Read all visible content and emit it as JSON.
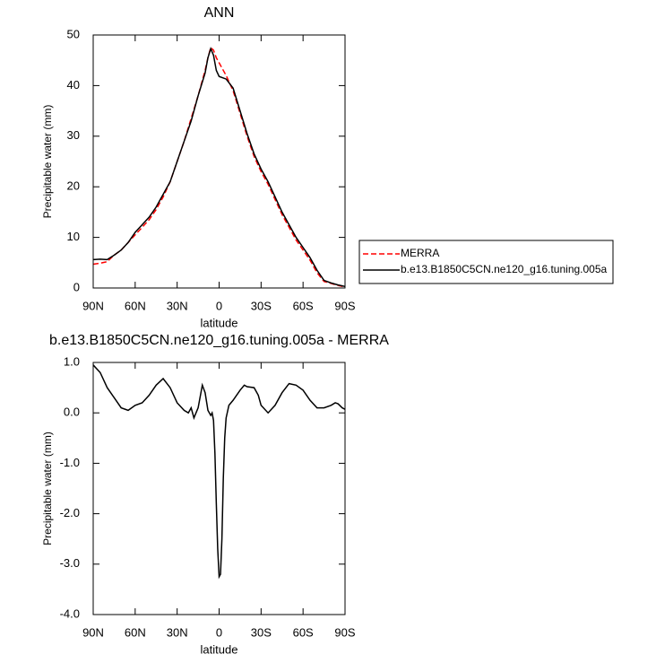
{
  "chart_data": [
    {
      "type": "line",
      "title": "ANN",
      "x_label": "latitude",
      "y_label": "Precipitable water (mm)",
      "xlim": [
        90,
        -90
      ],
      "ylim": [
        0,
        50
      ],
      "xticks": [
        {
          "value": 90,
          "label": "90N"
        },
        {
          "value": 60,
          "label": "60N"
        },
        {
          "value": 30,
          "label": "30N"
        },
        {
          "value": 0,
          "label": "0"
        },
        {
          "value": -30,
          "label": "30S"
        },
        {
          "value": -60,
          "label": "60S"
        },
        {
          "value": -90,
          "label": "90S"
        }
      ],
      "yticks": [
        0,
        10,
        20,
        30,
        40,
        50
      ],
      "legend": "right",
      "x": [
        90,
        85,
        80,
        75,
        70,
        65,
        60,
        55,
        50,
        45,
        40,
        35,
        30,
        25,
        20,
        15,
        10,
        8,
        6,
        4,
        2,
        0,
        -5,
        -10,
        -15,
        -20,
        -25,
        -30,
        -35,
        -40,
        -45,
        -50,
        -55,
        -60,
        -65,
        -70,
        -75,
        -80,
        -85,
        -90
      ],
      "series": [
        {
          "name": "MERRA",
          "color": "#ff0000",
          "line_style": "dashed",
          "values": [
            4.7,
            4.9,
            5.2,
            6.5,
            7.5,
            9,
            10.5,
            12,
            13.5,
            15.5,
            18,
            21,
            25,
            29,
            33.5,
            38,
            43,
            45.5,
            47.5,
            47,
            45.5,
            44.5,
            42,
            39,
            34.5,
            30,
            26,
            23,
            20.5,
            17.5,
            14.5,
            12,
            9.5,
            7.5,
            5.5,
            3,
            1.3,
            0.9,
            0.5,
            0.2
          ]
        },
        {
          "name": "b.e13.B1850C5CN.ne120_g16.tuning.005a",
          "color": "#000000",
          "line_style": "solid",
          "values": [
            5.6,
            5.7,
            5.6,
            6.5,
            7.5,
            9,
            11,
            12.5,
            14,
            16,
            18.5,
            21,
            25,
            29,
            33,
            38,
            42.5,
            45.5,
            47.3,
            46,
            43,
            41.8,
            41.3,
            39.5,
            35,
            30.5,
            26.5,
            23.5,
            21,
            18,
            15,
            12.5,
            10,
            8,
            6,
            3.5,
            1.5,
            1.0,
            0.6,
            0.3
          ]
        }
      ]
    },
    {
      "type": "line",
      "title": "b.e13.B1850C5CN.ne120_g16.tuning.005a - MERRA",
      "x_label": "latitude",
      "y_label": "Precipitable water (mm)",
      "xlim": [
        90,
        -90
      ],
      "ylim": [
        -4,
        1
      ],
      "xticks": [
        {
          "value": 90,
          "label": "90N"
        },
        {
          "value": 60,
          "label": "60N"
        },
        {
          "value": 30,
          "label": "30N"
        },
        {
          "value": 0,
          "label": "0"
        },
        {
          "value": -30,
          "label": "30S"
        },
        {
          "value": -60,
          "label": "60S"
        },
        {
          "value": -90,
          "label": "90S"
        }
      ],
      "yticks": [
        {
          "value": -4,
          "label": "-4.0"
        },
        {
          "value": -3,
          "label": "-3.0"
        },
        {
          "value": -2,
          "label": "-2.0"
        },
        {
          "value": -1,
          "label": "-1.0"
        },
        {
          "value": 0,
          "label": "0.0"
        },
        {
          "value": 1,
          "label": "1.0"
        }
      ],
      "x": [
        90,
        85,
        80,
        75,
        70,
        65,
        60,
        55,
        50,
        45,
        40,
        35,
        30,
        25,
        22,
        20,
        18,
        15,
        12,
        10,
        8,
        6,
        5,
        4,
        3,
        2,
        1,
        0,
        -1,
        -2,
        -3,
        -4,
        -5,
        -7,
        -10,
        -15,
        -18,
        -20,
        -25,
        -28,
        -30,
        -35,
        -40,
        -45,
        -50,
        -55,
        -60,
        -65,
        -70,
        -75,
        -80,
        -83,
        -85,
        -88,
        -90
      ],
      "series": [
        {
          "color": "#000000",
          "line_style": "solid",
          "values": [
            0.95,
            0.8,
            0.5,
            0.3,
            0.1,
            0.05,
            0.15,
            0.2,
            0.35,
            0.55,
            0.68,
            0.5,
            0.2,
            0.05,
            0.0,
            0.1,
            -0.1,
            0.1,
            0.55,
            0.4,
            0.05,
            -0.05,
            0.0,
            -0.15,
            -0.8,
            -1.8,
            -2.7,
            -3.25,
            -3.2,
            -2.5,
            -1.3,
            -0.5,
            -0.1,
            0.15,
            0.25,
            0.45,
            0.55,
            0.52,
            0.5,
            0.35,
            0.15,
            0.0,
            0.15,
            0.4,
            0.58,
            0.55,
            0.45,
            0.25,
            0.1,
            0.1,
            0.15,
            0.2,
            0.18,
            0.1,
            0.07
          ]
        }
      ]
    }
  ]
}
